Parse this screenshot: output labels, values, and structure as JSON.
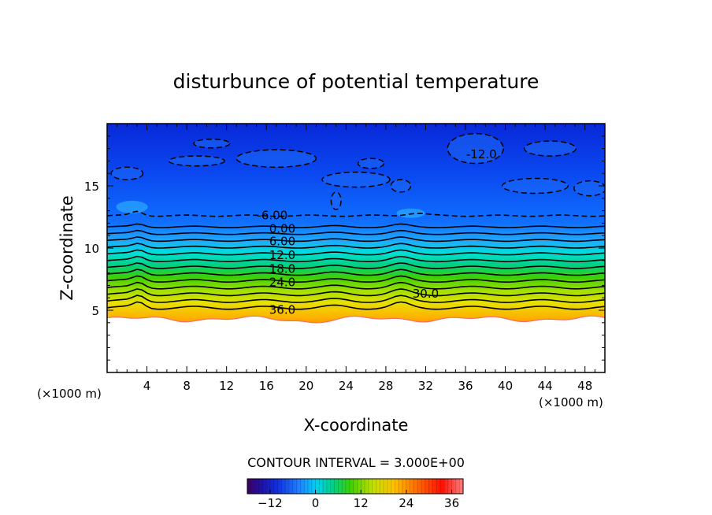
{
  "chart_data": {
    "type": "contour",
    "title": "disturbunce of potential temperature",
    "xlabel": "X-coordinate",
    "ylabel": "Z-coordinate",
    "x_unit": "(×1000 m)",
    "z_unit": "(×1000 m)",
    "xlim": [
      0,
      50
    ],
    "ylim": [
      0,
      20
    ],
    "x_ticks": [
      4,
      8,
      12,
      16,
      20,
      24,
      28,
      32,
      36,
      40,
      44,
      48
    ],
    "x_tick_labels": [
      "4",
      "8",
      "12",
      "16",
      "20",
      "24",
      "28",
      "32",
      "36",
      "40",
      "44",
      "48"
    ],
    "y_ticks": [
      5,
      10,
      15
    ],
    "y_tick_labels": [
      "5",
      "10",
      "15"
    ],
    "contour_interval_label": "CONTOUR INTERVAL = 3.000E+00",
    "contour_interval": 3.0,
    "value_range": [
      -18,
      39
    ],
    "ground_height_km": 4.3,
    "contour_labels": [
      {
        "text": "-6.00",
        "x": 16.6,
        "z": 12.7
      },
      {
        "text": "0.00",
        "x": 17.6,
        "z": 11.6
      },
      {
        "text": "6.00",
        "x": 17.6,
        "z": 10.6
      },
      {
        "text": "12.0",
        "x": 17.6,
        "z": 9.5
      },
      {
        "text": "18.0",
        "x": 17.6,
        "z": 8.4
      },
      {
        "text": "24.0",
        "x": 17.6,
        "z": 7.3
      },
      {
        "text": "30.0",
        "x": 32.0,
        "z": 6.4
      },
      {
        "text": "36.0",
        "x": 17.6,
        "z": 5.1
      },
      {
        "text": "-12.0",
        "x": 37.6,
        "z": 17.6
      }
    ],
    "colorbar": {
      "ticks": [
        -12,
        0,
        12,
        24,
        36
      ],
      "tick_labels": [
        "−12",
        "0",
        "12",
        "24",
        "36"
      ],
      "range": [
        -18,
        39
      ]
    },
    "colors": {
      "background": "#ffffff",
      "axis": "#000000",
      "contour": "#000000"
    }
  }
}
